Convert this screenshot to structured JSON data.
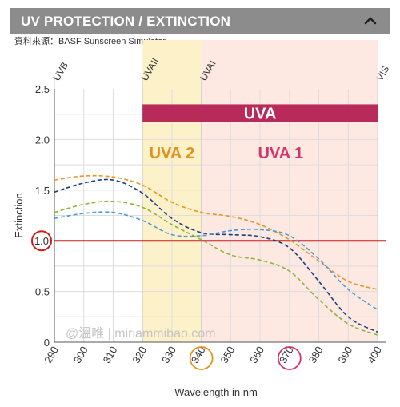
{
  "header": {
    "title": "UV PROTECTION / EXTINCTION",
    "toggle_icon": "chevron-up-icon"
  },
  "source": {
    "label": "資料來源：",
    "name": "BASF Sunscreen Simulator"
  },
  "watermark": "@溫唯 | miriammibao.com",
  "colors": {
    "header_bg": "#8c8c8c",
    "uvb_band": "#ffffff",
    "uva2_band": "#fdf1c9",
    "uva1_band": "#fde8e2",
    "uva_bar": "#b82a5a",
    "uva2_text": "#e0921c",
    "uva1_text": "#d6336c",
    "threshold": "#cc1a1a"
  },
  "chart_data": {
    "type": "line",
    "xlabel": "Wavelength in nm",
    "ylabel": "Extinction",
    "xlim": [
      290,
      400
    ],
    "ylim": [
      0,
      2.5
    ],
    "x_ticks": [
      290,
      300,
      310,
      320,
      330,
      340,
      350,
      360,
      370,
      380,
      390,
      400
    ],
    "y_ticks": [
      "0",
      "0.5",
      "1.0",
      "1.5",
      "2.0",
      "2.5"
    ],
    "y_tick_values": [
      0,
      0.5,
      1.0,
      1.5,
      2.0,
      2.5
    ],
    "grid": true,
    "bands": [
      {
        "label": "UVB",
        "from": 290,
        "to": 320
      },
      {
        "label": "UVAII",
        "from": 320,
        "to": 340
      },
      {
        "label": "UVAI",
        "from": 340,
        "to": 400
      },
      {
        "label": "VIS",
        "from": 400,
        "to": 400
      }
    ],
    "band_labels": [
      "UVB",
      "UVAII",
      "UVAI",
      "VIS"
    ],
    "band_label_x": [
      290,
      320,
      340,
      400
    ],
    "uva_label": "UVA",
    "uva_range": [
      320,
      400
    ],
    "uva_bar_level": 2.26,
    "uva2_label": "UVA 2",
    "uva2_range": [
      320,
      340
    ],
    "uva1_label": "UVA 1",
    "uva1_range": [
      340,
      400
    ],
    "sub_label_level": 1.87,
    "threshold": 1.0,
    "highlighted_ticks": [
      340,
      370
    ],
    "series": [
      {
        "color": "#e8951f",
        "x": [
          290,
          300,
          310,
          320,
          330,
          340,
          350,
          360,
          370,
          380,
          390,
          400
        ],
        "y": [
          1.6,
          1.64,
          1.63,
          1.55,
          1.38,
          1.28,
          1.24,
          1.16,
          1.01,
          0.8,
          0.6,
          0.52
        ]
      },
      {
        "color": "#1f3d7a",
        "x": [
          290,
          300,
          310,
          320,
          330,
          340,
          350,
          360,
          370,
          380,
          390,
          400
        ],
        "y": [
          1.48,
          1.57,
          1.6,
          1.47,
          1.22,
          1.08,
          1.06,
          1.04,
          0.93,
          0.6,
          0.25,
          0.1
        ]
      },
      {
        "color": "#8fb43c",
        "x": [
          290,
          300,
          310,
          320,
          330,
          340,
          350,
          360,
          370,
          380,
          390,
          400
        ],
        "y": [
          1.28,
          1.36,
          1.39,
          1.33,
          1.16,
          1.01,
          0.86,
          0.81,
          0.7,
          0.42,
          0.18,
          0.07
        ]
      },
      {
        "color": "#4a9ad4",
        "x": [
          290,
          300,
          310,
          320,
          330,
          340,
          350,
          360,
          370,
          380,
          390,
          400
        ],
        "y": [
          1.22,
          1.27,
          1.28,
          1.2,
          1.06,
          1.05,
          1.1,
          1.11,
          1.05,
          0.82,
          0.52,
          0.32
        ]
      }
    ]
  }
}
